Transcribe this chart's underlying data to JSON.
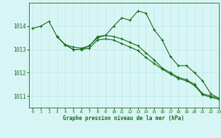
{
  "background_color": "#d8f5f5",
  "grid_color": "#c0e8e8",
  "line_color": "#1a6b1a",
  "title": "Graphe pression niveau de la mer (hPa)",
  "xlim": [
    -0.5,
    23
  ],
  "ylim": [
    1010.5,
    1015.0
  ],
  "yticks": [
    1011,
    1012,
    1013,
    1014
  ],
  "xticks": [
    0,
    1,
    2,
    3,
    4,
    5,
    6,
    7,
    8,
    9,
    10,
    11,
    12,
    13,
    14,
    15,
    16,
    17,
    18,
    19,
    20,
    21,
    22,
    23
  ],
  "line1": {
    "x": [
      0,
      1,
      2,
      3,
      4,
      5,
      6,
      7,
      8,
      9,
      10,
      11,
      12,
      13,
      14,
      15,
      16,
      17,
      18,
      19,
      20,
      21,
      22,
      23
    ],
    "y": [
      1013.9,
      1014.0,
      1014.2,
      1013.55,
      1013.2,
      1013.1,
      1013.05,
      1013.15,
      1013.5,
      1013.6,
      1014.0,
      1014.35,
      1014.25,
      1014.65,
      1014.55,
      1013.85,
      1013.4,
      1012.7,
      1012.3,
      1012.3,
      1012.0,
      1011.65,
      1011.1,
      1010.9
    ]
  },
  "line2": {
    "x": [
      3,
      4,
      5,
      6,
      7,
      8,
      9,
      10,
      11,
      12,
      13,
      14,
      15,
      16,
      17,
      18,
      19,
      20,
      21,
      22,
      23
    ],
    "y": [
      1013.55,
      1013.2,
      1013.0,
      1013.0,
      1013.15,
      1013.55,
      1013.6,
      1013.55,
      1013.45,
      1013.3,
      1013.15,
      1012.85,
      1012.55,
      1012.2,
      1012.0,
      1011.8,
      1011.7,
      1011.5,
      1011.1,
      1011.0,
      1010.9
    ]
  },
  "line3": {
    "x": [
      3,
      4,
      5,
      6,
      7,
      8,
      9,
      10,
      11,
      12,
      13,
      14,
      15,
      16,
      17,
      18,
      19,
      20,
      21,
      22,
      23
    ],
    "y": [
      1013.55,
      1013.2,
      1013.0,
      1013.0,
      1013.05,
      1013.4,
      1013.45,
      1013.4,
      1013.25,
      1013.1,
      1012.95,
      1012.65,
      1012.4,
      1012.15,
      1011.95,
      1011.75,
      1011.65,
      1011.45,
      1011.05,
      1010.95,
      1010.85
    ]
  }
}
